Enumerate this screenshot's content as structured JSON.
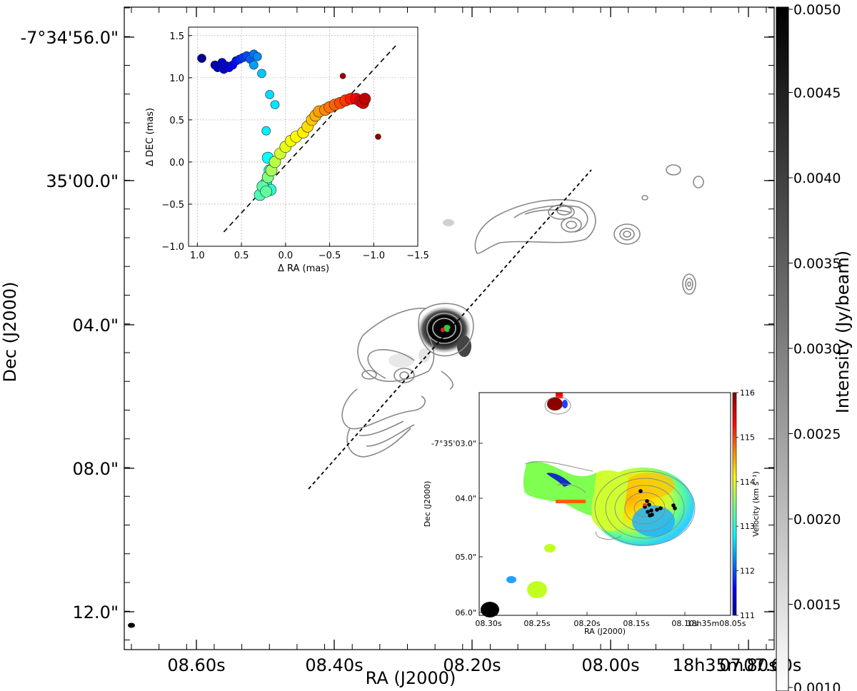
{
  "chart_data": [
    {
      "type": "image",
      "panel": "main",
      "xlabel": "RA (J2000)",
      "ylabel": "Dec (J2000)",
      "x_ticks": [
        "08.60s",
        "08.40s",
        "08.20s",
        "08.00s",
        "07.80s",
        "18h35m07.60s"
      ],
      "y_ticks": [
        "-7°34'56.0\"",
        "35'00.0\"",
        "04.0\"",
        "08.0\"",
        "12.0\""
      ],
      "colorbar": {
        "label": "Intensity (Jy/beam)",
        "ticks": [
          "0.0050",
          "0.0045",
          "0.0040",
          "0.0035",
          "0.0030",
          "0.0025",
          "0.0020",
          "0.0015",
          "0.0010"
        ],
        "range": [
          0.001,
          0.005
        ],
        "colormap": "gray_r"
      },
      "contours": true,
      "dashed_line": "outflow axis, PA ≈ 45°"
    },
    {
      "type": "scatter",
      "panel": "inset-top-left",
      "xlabel": "Δ RA (mas)",
      "ylabel": "Δ DEC (mas)",
      "xlim": [
        1.1,
        -1.5
      ],
      "ylim": [
        -1.0,
        1.6
      ],
      "x_ticks": [
        "1.0",
        "0.5",
        "0.0",
        "−0.5",
        "−1.0",
        "−1.5"
      ],
      "y_ticks": [
        "1.5",
        "1.0",
        "0.5",
        "0.0",
        "−0.5",
        "−1.0"
      ],
      "grid": true,
      "colormap": "jet",
      "points": [
        {
          "x": 0.95,
          "y": 1.23,
          "c": 0.02
        },
        {
          "x": 0.8,
          "y": 1.15,
          "c": 0.04
        },
        {
          "x": 0.77,
          "y": 1.12,
          "c": 0.06
        },
        {
          "x": 0.72,
          "y": 1.18,
          "c": 0.07
        },
        {
          "x": 0.7,
          "y": 1.1,
          "c": 0.08
        },
        {
          "x": 0.67,
          "y": 1.14,
          "c": 0.09
        },
        {
          "x": 0.64,
          "y": 1.12,
          "c": 0.1
        },
        {
          "x": 0.6,
          "y": 1.15,
          "c": 0.12
        },
        {
          "x": 0.56,
          "y": 1.2,
          "c": 0.14
        },
        {
          "x": 0.52,
          "y": 1.22,
          "c": 0.16
        },
        {
          "x": 0.48,
          "y": 1.24,
          "c": 0.18
        },
        {
          "x": 0.44,
          "y": 1.26,
          "c": 0.2
        },
        {
          "x": 0.4,
          "y": 1.22,
          "c": 0.22
        },
        {
          "x": 0.36,
          "y": 1.28,
          "c": 0.24
        },
        {
          "x": 0.32,
          "y": 1.25,
          "c": 0.26
        },
        {
          "x": 0.36,
          "y": 1.15,
          "c": 0.28
        },
        {
          "x": 0.27,
          "y": 1.05,
          "c": 0.32
        },
        {
          "x": 0.18,
          "y": 0.8,
          "c": 0.34
        },
        {
          "x": 0.12,
          "y": 0.68,
          "c": 0.35
        },
        {
          "x": 0.22,
          "y": 0.37,
          "c": 0.36
        },
        {
          "x": 0.2,
          "y": 0.05,
          "c": 0.38
        },
        {
          "x": 0.18,
          "y": -0.1,
          "c": 0.4
        },
        {
          "x": 0.22,
          "y": -0.25,
          "c": 0.4
        },
        {
          "x": 0.17,
          "y": -0.33,
          "c": 0.42
        },
        {
          "x": 0.25,
          "y": -0.35,
          "c": 0.44
        },
        {
          "x": 0.29,
          "y": -0.39,
          "c": 0.45
        },
        {
          "x": 0.26,
          "y": -0.29,
          "c": 0.46
        },
        {
          "x": 0.22,
          "y": -0.35,
          "c": 0.47
        },
        {
          "x": 0.2,
          "y": -0.18,
          "c": 0.5
        },
        {
          "x": 0.16,
          "y": -0.1,
          "c": 0.54
        },
        {
          "x": 0.12,
          "y": 0.0,
          "c": 0.56
        },
        {
          "x": 0.06,
          "y": 0.1,
          "c": 0.58
        },
        {
          "x": 0.0,
          "y": 0.18,
          "c": 0.6
        },
        {
          "x": -0.06,
          "y": 0.25,
          "c": 0.62
        },
        {
          "x": -0.12,
          "y": 0.3,
          "c": 0.63
        },
        {
          "x": -0.2,
          "y": 0.35,
          "c": 0.64
        },
        {
          "x": -0.25,
          "y": 0.42,
          "c": 0.66
        },
        {
          "x": -0.3,
          "y": 0.5,
          "c": 0.68
        },
        {
          "x": -0.34,
          "y": 0.55,
          "c": 0.7
        },
        {
          "x": -0.38,
          "y": 0.6,
          "c": 0.72
        },
        {
          "x": -0.45,
          "y": 0.62,
          "c": 0.74
        },
        {
          "x": -0.5,
          "y": 0.65,
          "c": 0.76
        },
        {
          "x": -0.56,
          "y": 0.68,
          "c": 0.78
        },
        {
          "x": -0.62,
          "y": 0.7,
          "c": 0.8
        },
        {
          "x": -0.68,
          "y": 0.73,
          "c": 0.82
        },
        {
          "x": -0.74,
          "y": 0.75,
          "c": 0.85
        },
        {
          "x": -0.8,
          "y": 0.75,
          "c": 0.88
        },
        {
          "x": -0.85,
          "y": 0.72,
          "c": 0.9
        },
        {
          "x": -0.88,
          "y": 0.7,
          "c": 0.92
        },
        {
          "x": -0.9,
          "y": 0.75,
          "c": 0.94
        },
        {
          "x": -0.65,
          "y": 1.02,
          "c": 0.97
        },
        {
          "x": -1.05,
          "y": 0.3,
          "c": 0.99
        }
      ],
      "fit_line": {
        "x": [
          0.7,
          -1.25
        ],
        "y": [
          -0.83,
          1.38
        ]
      }
    },
    {
      "type": "heatmap",
      "panel": "inset-bottom-right",
      "xlabel": "RA (J2000)",
      "ylabel": "Dec (J2000)",
      "x_ticks": [
        "08.30s",
        "08.25s",
        "08.20s",
        "08.15s",
        "08.10s",
        "18h35m08.05s"
      ],
      "y_ticks": [
        "-7°35'03.0\"",
        "04.0\"",
        "05.0\"",
        "06.0\""
      ],
      "colorbar": {
        "label": "Velocity (km s⁻¹)",
        "ticks": [
          "116",
          "115",
          "114",
          "113",
          "112",
          "111"
        ],
        "range": [
          111,
          116
        ],
        "colormap": "jet"
      },
      "maser_spots": "black dots"
    }
  ]
}
